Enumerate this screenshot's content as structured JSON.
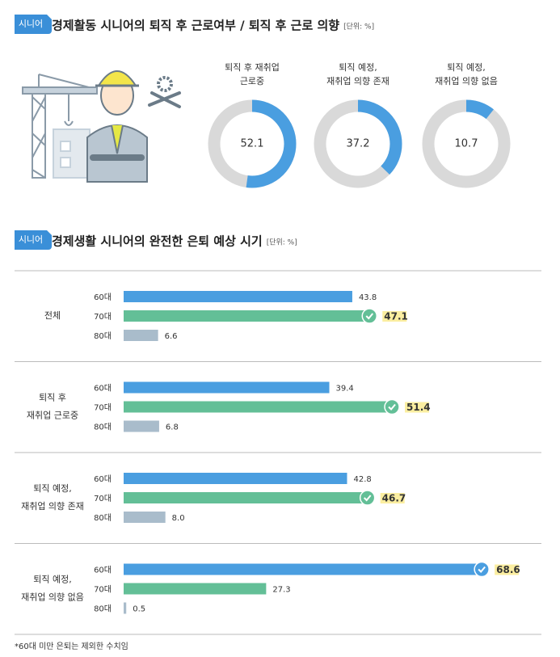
{
  "chart_data": [
    {
      "type": "donut",
      "badge": "시니어",
      "title": "경제활동 시니어의 퇴직 후 근로여부 / 퇴직 후 근로 의향",
      "unit": "[단위: %]",
      "categories": [
        [
          "퇴직 후 재취업",
          "근로중"
        ],
        [
          "퇴직 예정,",
          "재취업 의향 존재"
        ],
        [
          "퇴직 예정,",
          "재취업 의향 없음"
        ]
      ],
      "values": [
        52.1,
        37.2,
        10.7
      ],
      "color": "#4a9ee0",
      "track_color": "#d9d9d9"
    },
    {
      "type": "hbar",
      "badge": "시니어",
      "title": "경제생활 시니어의 완전한 은퇴 예상 시기",
      "unit": "[단위: %]",
      "categories": [
        [
          "전체"
        ],
        [
          "퇴직 후",
          "재취업 근로중"
        ],
        [
          "퇴직 예정,",
          "재취업 의향 존재"
        ],
        [
          "퇴직 예정,",
          "재취업 의향 없음"
        ]
      ],
      "series": [
        {
          "name": "60대",
          "color": "#4a9ee0",
          "values": [
            43.8,
            39.4,
            42.8,
            68.6
          ]
        },
        {
          "name": "70대",
          "color": "#63bf97",
          "values": [
            47.1,
            51.4,
            46.7,
            27.3
          ]
        },
        {
          "name": "80대",
          "color": "#a9bccb",
          "values": [
            6.6,
            6.8,
            8,
            0.5
          ],
          "value_labels": [
            "6.6",
            "6.8",
            "8.0",
            "0.5"
          ]
        }
      ]
    }
  ],
  "footnote": "*60대 미만 은퇴는 제외한 수치임"
}
